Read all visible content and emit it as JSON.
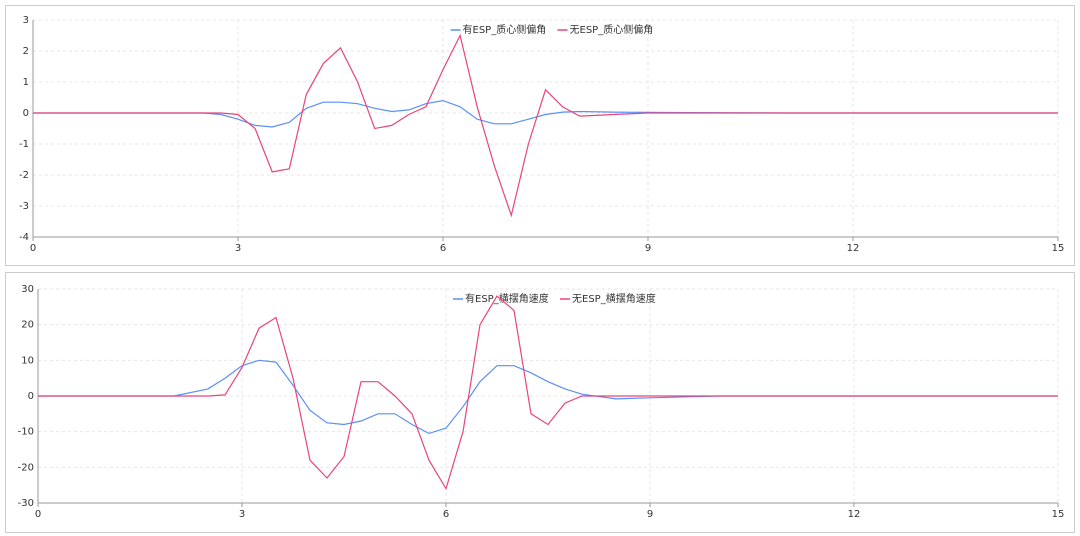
{
  "chart_data": [
    {
      "type": "line",
      "legend": "top",
      "grid": true,
      "x": [
        0,
        1,
        2,
        2.5,
        2.75,
        3,
        3.25,
        3.5,
        3.75,
        4,
        4.25,
        4.5,
        4.75,
        5,
        5.25,
        5.5,
        5.75,
        6,
        6.25,
        6.5,
        6.75,
        7,
        7.25,
        7.5,
        7.75,
        8,
        8.5,
        9,
        10,
        11,
        12,
        13,
        14,
        15
      ],
      "series": [
        {
          "name": "有ESP_质心侧偏角",
          "color": "#5b8ff9",
          "values": [
            0,
            0,
            0,
            0,
            -0.05,
            -0.2,
            -0.4,
            -0.45,
            -0.3,
            0.15,
            0.35,
            0.35,
            0.3,
            0.15,
            0.05,
            0.1,
            0.3,
            0.4,
            0.2,
            -0.2,
            -0.35,
            -0.35,
            -0.2,
            -0.05,
            0.03,
            0.05,
            0.03,
            0.02,
            0.01,
            0,
            0,
            0,
            0,
            0
          ]
        },
        {
          "name": "无ESP_质心侧偏角",
          "color": "#e8457c",
          "values": [
            0,
            0,
            0,
            0,
            0,
            -0.05,
            -0.5,
            -1.9,
            -1.8,
            0.6,
            1.6,
            2.1,
            1.0,
            -0.5,
            -0.4,
            -0.05,
            0.2,
            1.4,
            2.5,
            0.2,
            -1.7,
            -3.3,
            -1.0,
            0.75,
            0.2,
            -0.1,
            -0.05,
            0,
            0,
            0,
            0,
            0,
            0,
            0
          ]
        }
      ],
      "xlim": [
        0,
        15
      ],
      "xticks": [
        0,
        3,
        6,
        9,
        12,
        15
      ],
      "ylim": [
        -4,
        3
      ],
      "yticks": [
        -4,
        -3,
        -2,
        -1,
        0,
        1,
        2,
        3
      ]
    },
    {
      "type": "line",
      "legend": "top",
      "grid": true,
      "x": [
        0,
        1,
        2,
        2.5,
        2.75,
        3,
        3.25,
        3.5,
        3.75,
        4,
        4.25,
        4.5,
        4.75,
        5,
        5.25,
        5.5,
        5.75,
        6,
        6.25,
        6.5,
        6.75,
        7,
        7.25,
        7.5,
        7.75,
        8,
        8.5,
        9,
        10,
        11,
        12,
        13,
        14,
        15
      ],
      "series": [
        {
          "name": "有ESP_横摆角速度",
          "color": "#5b8ff9",
          "values": [
            0,
            0,
            0,
            2,
            5,
            8.5,
            10,
            9.5,
            3,
            -4,
            -7.5,
            -8,
            -7,
            -5,
            -5,
            -8,
            -10.5,
            -9,
            -3,
            4,
            8.5,
            8.5,
            6.5,
            4,
            2,
            0.5,
            -0.8,
            -0.5,
            0,
            0,
            0,
            0,
            0,
            0
          ]
        },
        {
          "name": "无ESP_横摆角速度",
          "color": "#e8457c",
          "values": [
            0,
            0,
            0,
            0,
            0.3,
            8,
            19,
            22,
            5,
            -18,
            -23,
            -17,
            4,
            4,
            0,
            -5,
            -18,
            -26,
            -10,
            20,
            28,
            24,
            -5,
            -8,
            -2,
            0,
            0,
            0,
            0,
            0,
            0,
            0,
            0,
            0
          ]
        }
      ],
      "xlim": [
        0,
        15
      ],
      "xticks": [
        0,
        3,
        6,
        9,
        12,
        15
      ],
      "ylim": [
        -30,
        30
      ],
      "yticks": [
        -30,
        -20,
        -10,
        0,
        10,
        20,
        30
      ]
    }
  ]
}
